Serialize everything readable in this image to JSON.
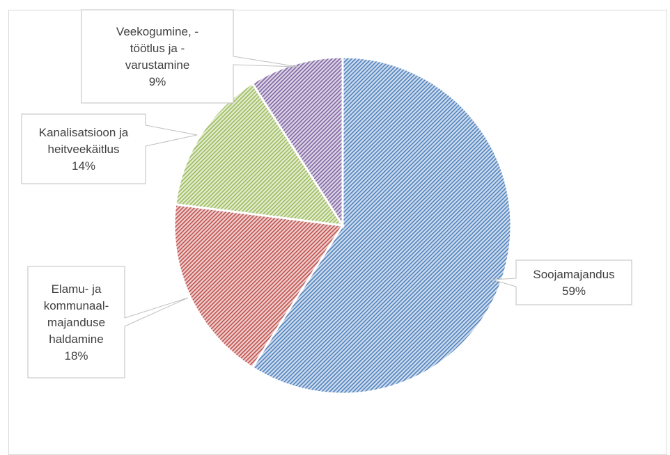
{
  "chart_data": {
    "type": "pie",
    "title": "",
    "legend": "none",
    "slices": [
      {
        "label_lines": [
          "Soojamajandus"
        ],
        "percent_label": "59%",
        "value": 59,
        "color": "#4f81bd"
      },
      {
        "label_lines": [
          "Elamu- ja",
          "kommunaal-",
          "majanduse",
          "haldamine"
        ],
        "percent_label": "18%",
        "value": 18,
        "color": "#c0504d"
      },
      {
        "label_lines": [
          "Kanalisatsioon ja",
          "heitveekäitlus"
        ],
        "percent_label": "14%",
        "value": 14,
        "color": "#9bbb59"
      },
      {
        "label_lines": [
          "Veekogumine, -",
          "töötlus ja -",
          "varustamine"
        ],
        "percent_label": "9%",
        "value": 9,
        "color": "#8064a2"
      }
    ]
  }
}
